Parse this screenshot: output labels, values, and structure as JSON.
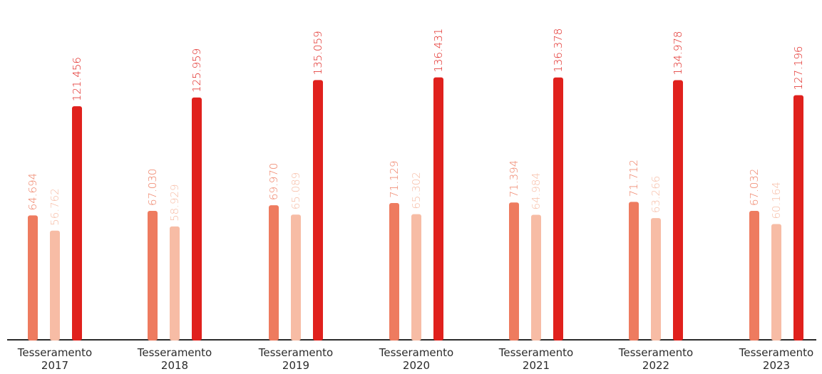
{
  "chart_data": {
    "type": "bar",
    "categories": [
      [
        "Tesseramento",
        "2017"
      ],
      [
        "Tesseramento",
        "2018"
      ],
      [
        "Tesseramento",
        "2019"
      ],
      [
        "Tesseramento",
        "2020"
      ],
      [
        "Tesseramento",
        "2021"
      ],
      [
        "Tesseramento",
        "2022"
      ],
      [
        "Tesseramento",
        "2023"
      ]
    ],
    "series": [
      {
        "color": "#ee7b5f",
        "values": [
          64694,
          67030,
          69970,
          71129,
          71394,
          71712,
          67032
        ],
        "labels": [
          "64.694",
          "67.030",
          "69.970",
          "71.129",
          "71.394",
          "71.712",
          "67.032"
        ]
      },
      {
        "color": "#f7bca5",
        "values": [
          56762,
          58929,
          65089,
          65302,
          64984,
          63266,
          60164
        ],
        "labels": [
          "56.762",
          "58.929",
          "65.089",
          "65.302",
          "64.984",
          "63.266",
          "60.164"
        ]
      },
      {
        "color": "#e0211d",
        "values": [
          121456,
          125959,
          135059,
          136431,
          136378,
          134978,
          127196
        ],
        "labels": [
          "121.456",
          "125.959",
          "135.059",
          "136.431",
          "136.378",
          "134.978",
          "127.196"
        ]
      }
    ],
    "ylim": [
      0,
      140000
    ],
    "title": "",
    "xlabel": "",
    "ylabel": "",
    "grid": false,
    "legend": "none"
  }
}
